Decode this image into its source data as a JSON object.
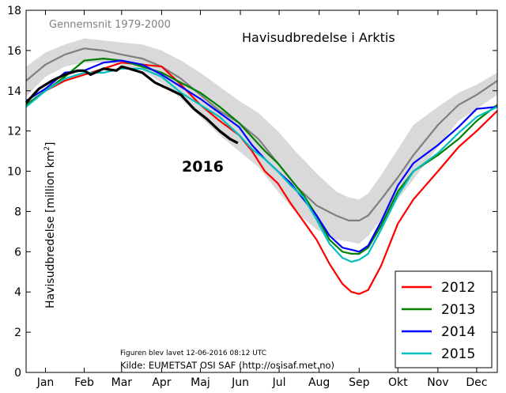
{
  "chart_data": {
    "type": "line",
    "title": "Havisudbredelse i Arktis",
    "ylabel": "Havisudbredelse [million km²]",
    "ylabel_main": "Havisudbredelse [million km",
    "ylabel_sup": "2",
    "ylabel_tail": "]",
    "xlabel": "",
    "x_unit": "day of year",
    "xlim": [
      0,
      365
    ],
    "ylim": [
      0,
      18
    ],
    "grid": false,
    "legend_position": "bottom-right",
    "month_labels": [
      "Jan",
      "Feb",
      "Mar",
      "Apr",
      "Maj",
      "Jun",
      "Jul",
      "Aug",
      "Sep",
      "Okt",
      "Nov",
      "Dec"
    ],
    "month_label_day": [
      15,
      45,
      74,
      105,
      135,
      166,
      196,
      227,
      258,
      288,
      319,
      349
    ],
    "y_ticks": [
      0,
      2,
      4,
      6,
      8,
      10,
      12,
      14,
      16,
      18
    ],
    "average": {
      "label": "Gennemsnit 1979-2000",
      "color": "#808080",
      "band_color": "#d9d9d9",
      "x": [
        0,
        15,
        30,
        45,
        60,
        74,
        90,
        105,
        120,
        135,
        150,
        165,
        180,
        195,
        210,
        225,
        240,
        250,
        258,
        265,
        275,
        288,
        300,
        319,
        335,
        349,
        365
      ],
      "mean": [
        14.5,
        15.3,
        15.8,
        16.1,
        16.0,
        15.8,
        15.6,
        15.2,
        14.6,
        13.8,
        13.0,
        12.4,
        11.6,
        10.4,
        9.2,
        8.3,
        7.8,
        7.55,
        7.55,
        7.8,
        8.6,
        9.7,
        10.8,
        12.3,
        13.3,
        13.8,
        14.5
      ],
      "upper": [
        15.2,
        15.9,
        16.3,
        16.6,
        16.5,
        16.4,
        16.3,
        16.0,
        15.5,
        14.9,
        14.2,
        13.5,
        12.9,
        12.0,
        10.9,
        9.9,
        9.0,
        8.7,
        8.6,
        8.9,
        9.8,
        11.1,
        12.3,
        13.2,
        13.9,
        14.3,
        14.9
      ],
      "lower": [
        13.7,
        14.7,
        15.2,
        15.4,
        15.4,
        15.3,
        15.0,
        14.4,
        13.6,
        12.7,
        11.8,
        11.0,
        10.2,
        9.0,
        7.9,
        7.1,
        6.6,
        6.5,
        6.4,
        6.8,
        7.6,
        8.6,
        9.6,
        11.2,
        12.5,
        13.1,
        13.8
      ]
    },
    "series": [
      {
        "name": "2012",
        "color": "#ff0000",
        "x": [
          0,
          15,
          30,
          45,
          60,
          74,
          90,
          105,
          120,
          135,
          150,
          165,
          175,
          185,
          195,
          205,
          215,
          225,
          235,
          245,
          252,
          258,
          265,
          275,
          288,
          300,
          319,
          335,
          349,
          365
        ],
        "y": [
          13.3,
          14.0,
          14.5,
          14.8,
          15.1,
          15.4,
          15.3,
          15.2,
          14.3,
          13.3,
          12.5,
          11.8,
          11.0,
          10.0,
          9.4,
          8.4,
          7.5,
          6.6,
          5.4,
          4.4,
          4.0,
          3.9,
          4.1,
          5.3,
          7.4,
          8.6,
          10.0,
          11.2,
          12.0,
          13.0
        ]
      },
      {
        "name": "2013",
        "color": "#008000",
        "x": [
          0,
          15,
          30,
          45,
          60,
          74,
          90,
          105,
          120,
          135,
          150,
          165,
          175,
          185,
          195,
          205,
          215,
          225,
          235,
          245,
          252,
          258,
          265,
          275,
          288,
          300,
          319,
          335,
          349,
          365
        ],
        "y": [
          13.3,
          14.0,
          14.7,
          15.5,
          15.6,
          15.5,
          15.2,
          14.9,
          14.4,
          13.9,
          13.2,
          12.4,
          11.7,
          11.0,
          10.4,
          9.6,
          8.8,
          7.8,
          6.6,
          6.0,
          5.9,
          5.9,
          6.2,
          7.3,
          9.0,
          10.0,
          10.8,
          11.6,
          12.5,
          13.3
        ]
      },
      {
        "name": "2014",
        "color": "#0000ff",
        "x": [
          0,
          15,
          30,
          45,
          60,
          74,
          90,
          105,
          120,
          135,
          150,
          165,
          175,
          185,
          195,
          205,
          215,
          225,
          235,
          245,
          252,
          258,
          265,
          275,
          288,
          300,
          319,
          335,
          349,
          365
        ],
        "y": [
          13.5,
          14.1,
          14.9,
          15.0,
          15.4,
          15.5,
          15.3,
          14.8,
          14.2,
          13.6,
          12.9,
          12.2,
          11.3,
          10.6,
          10.0,
          9.4,
          8.6,
          7.8,
          6.8,
          6.2,
          6.1,
          6.0,
          6.3,
          7.5,
          9.3,
          10.4,
          11.3,
          12.2,
          13.1,
          13.2
        ]
      },
      {
        "name": "2015",
        "color": "#00bfbf",
        "x": [
          0,
          15,
          30,
          45,
          60,
          74,
          90,
          105,
          120,
          135,
          150,
          165,
          175,
          185,
          195,
          205,
          215,
          225,
          235,
          245,
          252,
          258,
          265,
          275,
          288,
          300,
          319,
          335,
          349,
          365
        ],
        "y": [
          13.2,
          14.0,
          14.6,
          14.9,
          14.9,
          15.1,
          15.1,
          14.7,
          13.9,
          13.3,
          12.7,
          11.8,
          11.1,
          10.6,
          10.0,
          9.3,
          8.7,
          7.6,
          6.4,
          5.7,
          5.5,
          5.6,
          5.9,
          7.1,
          8.8,
          10.0,
          10.9,
          11.9,
          12.7,
          13.2
        ]
      },
      {
        "name": "2016",
        "color": "#000000",
        "label": "2016",
        "x": [
          0,
          10,
          20,
          30,
          40,
          45,
          50,
          60,
          70,
          74,
          80,
          90,
          100,
          110,
          120,
          130,
          140,
          150,
          158,
          164
        ],
        "y": [
          13.4,
          14.1,
          14.5,
          14.8,
          15.0,
          15.0,
          14.8,
          15.1,
          15.0,
          15.2,
          15.1,
          14.9,
          14.4,
          14.1,
          13.8,
          13.1,
          12.6,
          12.0,
          11.6,
          11.4
        ]
      }
    ],
    "legend": [
      "2012",
      "2013",
      "2014",
      "2015"
    ],
    "annotations": {
      "created": "Figuren blev lavet 12-06-2016 08:12 UTC",
      "source": "Kilde: EUMETSAT OSI SAF (http://osisaf.met.no)"
    }
  }
}
